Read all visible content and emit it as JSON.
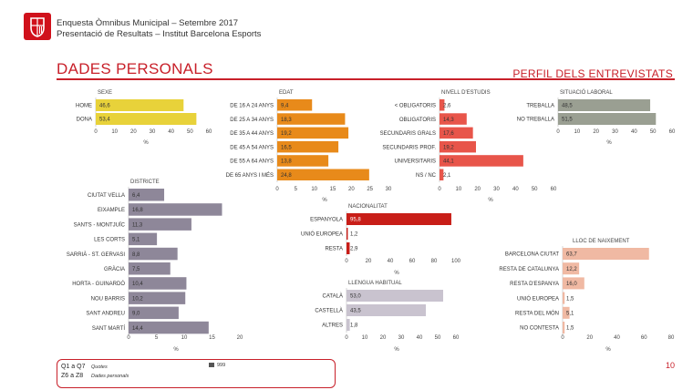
{
  "header": {
    "line1": "Enquesta Òmnibus Municipal – Setembre 2017",
    "line2": "Presentació de Resultats – Institut Barcelona Esports",
    "logo": "barcelona-shield-icon"
  },
  "title": "DADES PERSONALS",
  "subtitle": "PERFIL DELS ENTREVISTATS",
  "footer": {
    "q_label": "Q1 a Q7",
    "q_desc": "Quotes",
    "z_label": "Z6 a Z8",
    "z_desc": "Dades personals",
    "n_value": "999",
    "page": "10"
  },
  "colors": {
    "accent": "#c8202a",
    "sexe": "#e8d23a",
    "edat": "#e88a1a",
    "estudis": "#e8554a",
    "laboral": "#9a9f92",
    "districte": "#8e8799",
    "nacionalitat": "#c81e18",
    "llengua": "#c9c3cf",
    "naixement": "#f0b9a3"
  },
  "chart_data": [
    {
      "id": "sexe",
      "type": "bar",
      "title": "SEXE",
      "xlabel": "%",
      "categories": [
        "HOME",
        "DONA"
      ],
      "values": [
        46.6,
        53.4
      ],
      "labels": [
        "46,6",
        "53,4"
      ],
      "xlim": [
        0,
        60
      ],
      "ticks": [
        "0",
        "10",
        "20",
        "30",
        "40",
        "50",
        "60"
      ]
    },
    {
      "id": "edat",
      "type": "bar",
      "title": "EDAT",
      "xlabel": "%",
      "categories": [
        "DE 16 A 24 ANYS",
        "DE 25 A 34 ANYS",
        "DE 35 A 44 ANYS",
        "DE 45 A 54 ANYS",
        "DE 55 A 64 ANYS",
        "DE 65 ANYS I MÉS"
      ],
      "values": [
        9.4,
        18.3,
        19.2,
        16.5,
        13.8,
        24.8
      ],
      "labels": [
        "9,4",
        "18,3",
        "19,2",
        "16,5",
        "13,8",
        "24,8"
      ],
      "xlim": [
        0,
        30
      ],
      "ticks": [
        "0",
        "5",
        "10",
        "15",
        "20",
        "25",
        "30"
      ]
    },
    {
      "id": "estudis",
      "type": "bar",
      "title": "NIVELL D'ESTUDIS",
      "xlabel": "%",
      "categories": [
        "< OBLIGATORIS",
        "OBLIGATORIS",
        "SECUNDARIS GRALS",
        "SECUNDARIS PROF.",
        "UNIVERSITARIS",
        "NS / NC"
      ],
      "values": [
        2.6,
        14.3,
        17.6,
        19.2,
        44.1,
        2.1
      ],
      "labels": [
        "2,6",
        "14,3",
        "17,6",
        "19,2",
        "44,1",
        "2,1"
      ],
      "xlim": [
        0,
        60
      ],
      "ticks": [
        "0",
        "10",
        "20",
        "30",
        "40",
        "50",
        "60"
      ]
    },
    {
      "id": "laboral",
      "type": "bar",
      "title": "SITUACIÓ LABORAL",
      "xlabel": "%",
      "categories": [
        "TREBALLA",
        "NO TREBALLA"
      ],
      "values": [
        48.5,
        51.5
      ],
      "labels": [
        "48,5",
        "51,5"
      ],
      "xlim": [
        0,
        60
      ],
      "ticks": [
        "0",
        "10",
        "20",
        "30",
        "40",
        "50",
        "60"
      ]
    },
    {
      "id": "districte",
      "type": "bar",
      "title": "DISTRICTE",
      "xlabel": "%",
      "categories": [
        "CIUTAT VELLA",
        "EIXAMPLE",
        "SANTS - MONTJUÏC",
        "LES CORTS",
        "SARRIÀ - ST. GERVASI",
        "GRÀCIA",
        "HORTA - GUINARDÓ",
        "NOU BARRIS",
        "SANT ANDREU",
        "SANT MARTÍ"
      ],
      "values": [
        6.4,
        16.8,
        11.3,
        5.1,
        8.8,
        7.5,
        10.4,
        10.2,
        9.0,
        14.4
      ],
      "labels": [
        "6,4",
        "16,8",
        "11,3",
        "5,1",
        "8,8",
        "7,5",
        "10,4",
        "10,2",
        "9,0",
        "14,4"
      ],
      "xlim": [
        0,
        20
      ],
      "ticks": [
        "0",
        "5",
        "10",
        "15",
        "20"
      ]
    },
    {
      "id": "nacionalitat",
      "type": "bar",
      "title": "NACIONALITAT",
      "xlabel": "%",
      "categories": [
        "ESPANYOLA",
        "UNIÓ EUROPEA",
        "RESTA"
      ],
      "values": [
        95.8,
        1.2,
        2.9
      ],
      "labels": [
        "95,8",
        "1,2",
        "2,9"
      ],
      "xlim": [
        0,
        100
      ],
      "ticks": [
        "0",
        "20",
        "40",
        "60",
        "80",
        "100"
      ]
    },
    {
      "id": "llengua",
      "type": "bar",
      "title": "LLENGUA HABITUAL",
      "xlabel": "%",
      "categories": [
        "CATALÀ",
        "CASTELLÀ",
        "ALTRES"
      ],
      "values": [
        53.0,
        43.5,
        1.8
      ],
      "labels": [
        "53,0",
        "43,5",
        "1,8"
      ],
      "xlim": [
        0,
        60
      ],
      "ticks": [
        "0",
        "10",
        "20",
        "30",
        "40",
        "50",
        "60"
      ]
    },
    {
      "id": "naixement",
      "type": "bar",
      "title": "LLOC DE NAIXEMENT",
      "xlabel": "%",
      "categories": [
        "BARCELONA CIUTAT",
        "RESTA DE CATALUNYA",
        "RESTA D'ESPANYA",
        "UNIÓ EUROPEA",
        "RESTA DEL MÓN",
        "NO CONTESTA"
      ],
      "values": [
        63.7,
        12.2,
        16.0,
        1.5,
        5.1,
        1.5
      ],
      "labels": [
        "63,7",
        "12,2",
        "16,0",
        "1,5",
        "5,1",
        "1,5"
      ],
      "xlim": [
        0,
        80
      ],
      "ticks": [
        "0",
        "20",
        "40",
        "60",
        "80"
      ]
    }
  ]
}
